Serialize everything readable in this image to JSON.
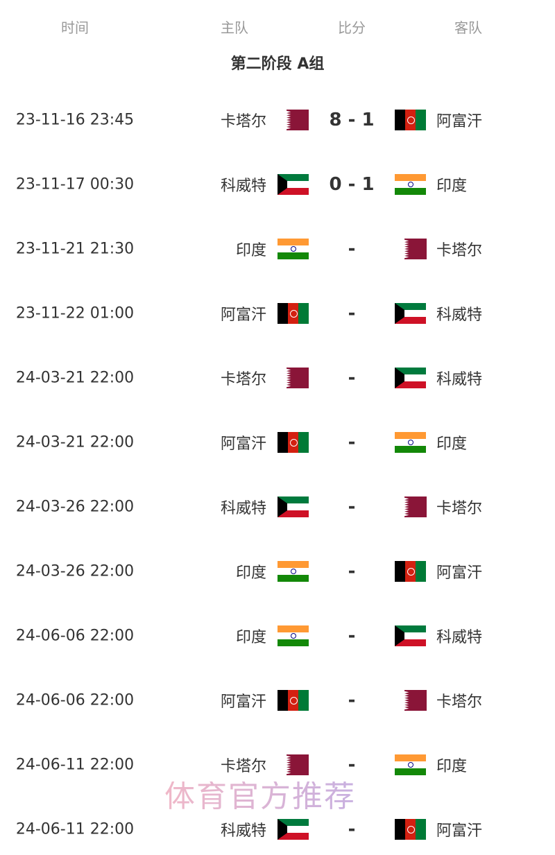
{
  "header": {
    "time": "时间",
    "home": "主队",
    "score": "比分",
    "away": "客队"
  },
  "group_title": "第二阶段 A组",
  "flags": {
    "卡塔尔": "qat",
    "阿富汗": "afg",
    "科威特": "kuw",
    "印度": "ind"
  },
  "matches": [
    {
      "time": "23-11-16 23:45",
      "home": "卡塔尔",
      "score": "8 - 1",
      "away": "阿富汗"
    },
    {
      "time": "23-11-17 00:30",
      "home": "科威特",
      "score": "0 - 1",
      "away": "印度"
    },
    {
      "time": "23-11-21 21:30",
      "home": "印度",
      "score": "-",
      "away": "卡塔尔"
    },
    {
      "time": "23-11-22 01:00",
      "home": "阿富汗",
      "score": "-",
      "away": "科威特"
    },
    {
      "time": "24-03-21 22:00",
      "home": "卡塔尔",
      "score": "-",
      "away": "科威特"
    },
    {
      "time": "24-03-21 22:00",
      "home": "阿富汗",
      "score": "-",
      "away": "印度"
    },
    {
      "time": "24-03-26 22:00",
      "home": "科威特",
      "score": "-",
      "away": "卡塔尔"
    },
    {
      "time": "24-03-26 22:00",
      "home": "印度",
      "score": "-",
      "away": "阿富汗"
    },
    {
      "time": "24-06-06 22:00",
      "home": "印度",
      "score": "-",
      "away": "科威特"
    },
    {
      "time": "24-06-06 22:00",
      "home": "阿富汗",
      "score": "-",
      "away": "卡塔尔"
    },
    {
      "time": "24-06-11 22:00",
      "home": "卡塔尔",
      "score": "-",
      "away": "印度"
    },
    {
      "time": "24-06-11 22:00",
      "home": "科威特",
      "score": "-",
      "away": "阿富汗"
    }
  ],
  "watermark": "体育官方推荐"
}
